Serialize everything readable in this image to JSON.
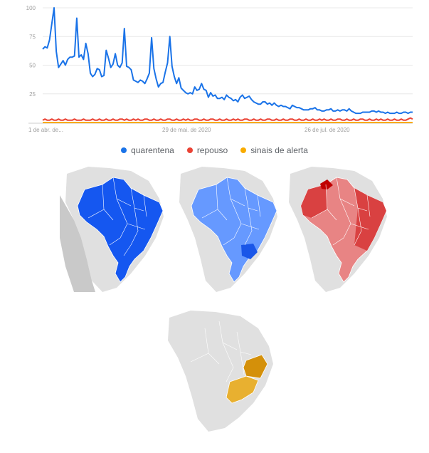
{
  "chart_data": {
    "type": "line",
    "y_ticks": [
      "100",
      "75",
      "50",
      "25"
    ],
    "ylim": [
      0,
      100
    ],
    "x_tick_labels": [
      "1 de abr. de...",
      "29 de mai. de 2020",
      "26 de jul. de 2020"
    ],
    "grid": true,
    "legend_position": "bottom",
    "series": [
      {
        "name": "quarentena",
        "color": "#1a73e8",
        "values": [
          64,
          66,
          65,
          72,
          86,
          100,
          62,
          48,
          51,
          54,
          50,
          55,
          57,
          57,
          58,
          91,
          57,
          59,
          55,
          69,
          60,
          43,
          40,
          42,
          47,
          46,
          40,
          41,
          63,
          56,
          48,
          51,
          60,
          50,
          48,
          52,
          82,
          49,
          48,
          46,
          37,
          36,
          35,
          37,
          36,
          34,
          38,
          43,
          74,
          47,
          38,
          31,
          34,
          35,
          44,
          52,
          75,
          49,
          40,
          34,
          39,
          30,
          28,
          26,
          25,
          26,
          25,
          31,
          28,
          29,
          34,
          29,
          28,
          22,
          26,
          23,
          24,
          21,
          21,
          22,
          20,
          24,
          22,
          21,
          19,
          20,
          18,
          22,
          24,
          21,
          22,
          23,
          20,
          18,
          17,
          16,
          16,
          18,
          18,
          16,
          17,
          15,
          17,
          15,
          14,
          15,
          14,
          14,
          13,
          12,
          15,
          14,
          13,
          13,
          12,
          11,
          11,
          11,
          12,
          12,
          13,
          11,
          11,
          10,
          10,
          11,
          11,
          12,
          10,
          10,
          11,
          10,
          11,
          11,
          10,
          12,
          10,
          9,
          8,
          8,
          8,
          9,
          9,
          9,
          9,
          10,
          10,
          9,
          10,
          9,
          9,
          8,
          9,
          8,
          8,
          8,
          9,
          8,
          8,
          9,
          9,
          8,
          9,
          9
        ],
        "note": ""
      },
      {
        "name": "repouso",
        "color": "#ea4335",
        "values": [
          2,
          3,
          2,
          2,
          3,
          2,
          2,
          3,
          2,
          2,
          3,
          2,
          2,
          2,
          3,
          2,
          2,
          2,
          3,
          2,
          2,
          2,
          3,
          2,
          2,
          3,
          2,
          2,
          3,
          2,
          2,
          3,
          2,
          2,
          3,
          3,
          2,
          3,
          2,
          2,
          3,
          2,
          3,
          2,
          2,
          3,
          3,
          2,
          2,
          3,
          2,
          2,
          3,
          2,
          2,
          3,
          3,
          2,
          2,
          3,
          2,
          2,
          3,
          2,
          3,
          2,
          2,
          3,
          3,
          2,
          2,
          3,
          2,
          2,
          3,
          3,
          2,
          2,
          3,
          2,
          2,
          3,
          2,
          2,
          3,
          2,
          3,
          2,
          2,
          3,
          3,
          2,
          2,
          3,
          2,
          2,
          3,
          2,
          2,
          3,
          3,
          2,
          2,
          3,
          2,
          2,
          3,
          2,
          2,
          3,
          3,
          2,
          2,
          3,
          2,
          2,
          3,
          2,
          2,
          3,
          2,
          2,
          3,
          2,
          3,
          2,
          2,
          3,
          2,
          2,
          3,
          3,
          2,
          2,
          3,
          2,
          2,
          3,
          2,
          2,
          3,
          3,
          2,
          2,
          3,
          2,
          2,
          3,
          2,
          3,
          2,
          2,
          3,
          2,
          2,
          3,
          2,
          2,
          3,
          2,
          2,
          3,
          4,
          3
        ],
        "note": ""
      },
      {
        "name": "sinais de alerta",
        "color": "#f9ab00",
        "values": [
          0,
          0,
          0,
          0,
          0,
          0,
          0,
          0,
          0,
          0,
          0,
          0,
          0,
          0,
          0,
          0,
          0,
          0,
          0,
          0,
          0,
          0,
          0,
          0,
          0,
          0,
          0,
          0,
          0,
          0,
          0,
          0,
          0,
          0,
          0,
          0,
          0,
          0,
          0,
          0,
          0,
          0,
          0,
          0,
          0,
          0,
          0,
          0,
          0,
          0,
          0,
          0,
          0,
          0,
          0,
          0,
          0,
          0,
          0,
          0,
          0,
          0,
          0,
          0,
          0,
          0,
          0,
          0,
          0,
          0,
          0,
          0,
          0,
          0,
          0,
          0,
          0,
          0,
          0,
          0,
          0,
          0,
          0,
          0,
          0,
          0,
          0,
          0,
          0,
          0,
          0,
          0,
          0,
          0,
          0,
          0,
          0,
          0,
          0,
          0,
          0,
          0,
          0,
          0,
          0,
          0,
          0,
          0,
          0,
          0,
          0,
          0,
          0,
          0,
          0,
          0,
          0,
          0,
          0,
          0,
          0,
          0,
          0,
          0,
          0,
          0,
          0,
          0,
          0,
          0,
          0,
          0,
          0,
          0,
          0,
          0,
          0,
          0,
          0,
          0,
          0,
          0,
          0,
          0,
          0,
          0,
          0,
          0,
          0,
          0,
          0,
          0,
          0,
          0,
          0,
          0,
          0,
          0,
          0,
          0,
          0,
          0,
          0,
          0
        ],
        "note": ""
      }
    ]
  },
  "maps": [
    {
      "name": "quarentena",
      "fill": "#1557f0"
    },
    {
      "name": "quarentena",
      "fill": "#6699ff",
      "highlight": "#1a56e8"
    },
    {
      "name": "repouso",
      "fill": "#e88484",
      "dark": "#d94141",
      "highlight": "#c00000"
    },
    {
      "name": "sinais de alerta",
      "fill": "#e8b030",
      "dark": "#d4900a"
    }
  ],
  "colors": {
    "gridline": "#e8e8e8",
    "axis": "#cccccc",
    "tick_text": "#9e9e9e",
    "land": "#e0e0e0",
    "land_dark": "#c9c9c9",
    "border": "#ffffff"
  }
}
